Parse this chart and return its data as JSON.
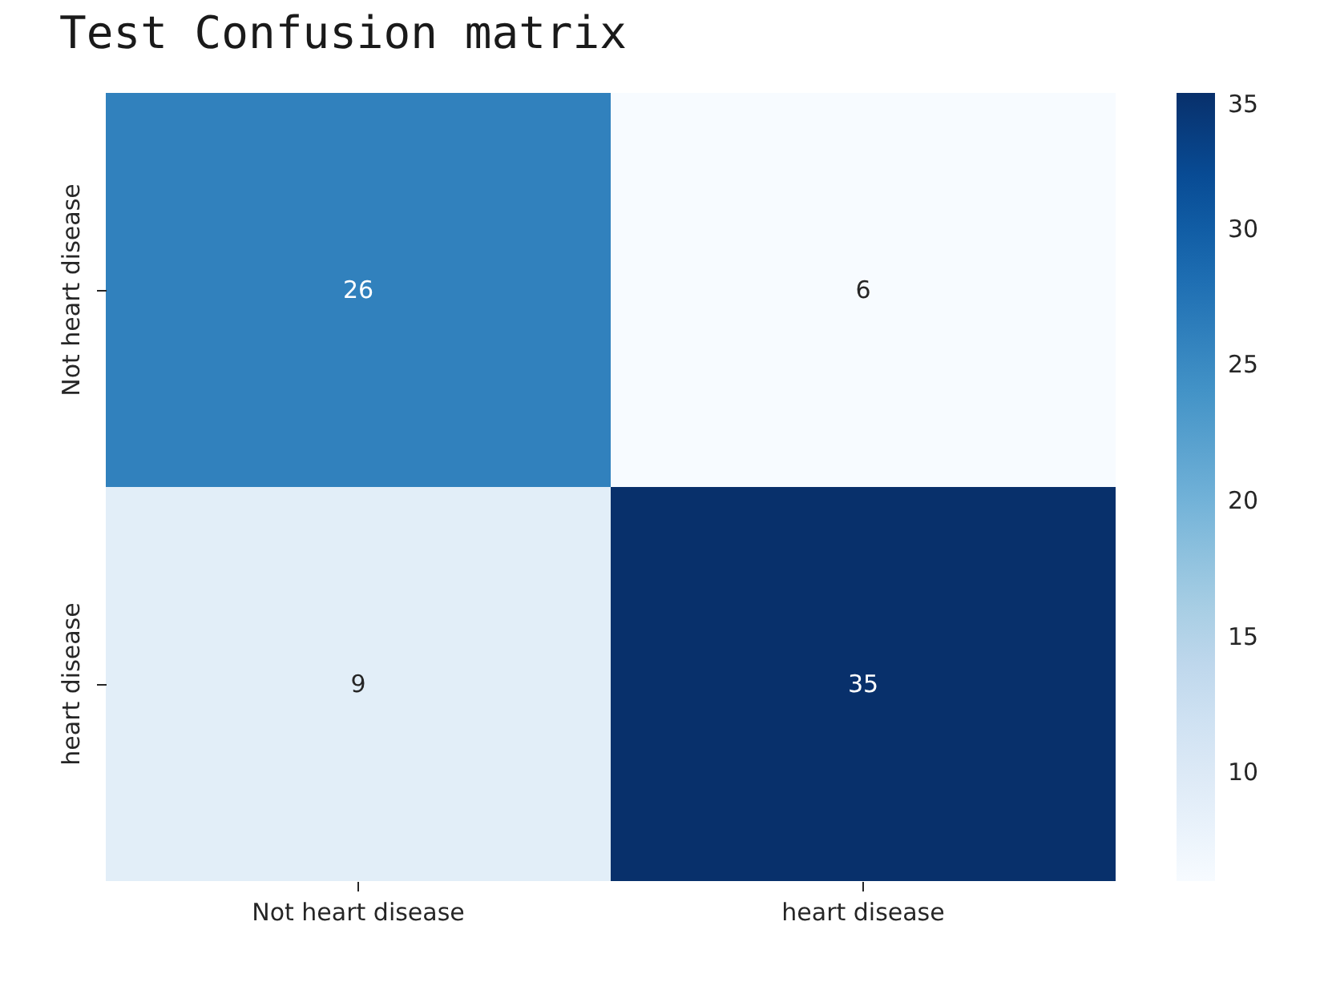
{
  "chart_data": {
    "type": "heatmap",
    "title": "Test Confusion matrix",
    "categories": [
      "Not heart disease",
      "heart disease"
    ],
    "y_categories": [
      "Not heart disease",
      "heart disease"
    ],
    "cells": [
      [
        26,
        6
      ],
      [
        9,
        35
      ]
    ],
    "clim": [
      6,
      35
    ],
    "cticks": [
      10,
      15,
      20,
      25,
      30,
      35
    ],
    "data_labels": true
  }
}
